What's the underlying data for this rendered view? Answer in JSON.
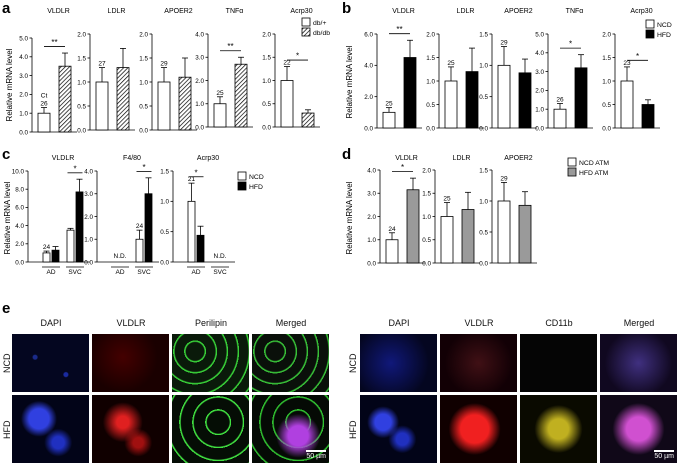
{
  "panels": {
    "a": "a",
    "b": "b",
    "c": "c",
    "d": "d",
    "e": "e"
  },
  "ylabel": "Relative mRNA level",
  "legends": {
    "a": [
      {
        "label": "db/+",
        "fill": "white"
      },
      {
        "label": "db/db",
        "fill": "hatched"
      }
    ],
    "b": [
      {
        "label": "NCD",
        "fill": "white"
      },
      {
        "label": "HFD",
        "fill": "black"
      }
    ],
    "c": [
      {
        "label": "NCD",
        "fill": "white"
      },
      {
        "label": "HFD",
        "fill": "black"
      }
    ],
    "d": [
      {
        "label": "NCD ATM",
        "fill": "white"
      },
      {
        "label": "HFD ATM",
        "fill": "gray"
      }
    ]
  },
  "colors": {
    "white": "#ffffff",
    "black": "#000000",
    "gray": "#9a9a9a",
    "hatched": "#000000"
  },
  "chart_data": [
    {
      "panel": "a",
      "type": "bar",
      "title": "VLDLR",
      "ylim": [
        0,
        5
      ],
      "tick_step": 1,
      "series": [
        {
          "name": "db/+",
          "values": [
            1.0
          ],
          "errors": [
            0.3
          ]
        },
        {
          "name": "db/db",
          "values": [
            3.5
          ],
          "errors": [
            0.7
          ]
        }
      ],
      "ct_label": "26",
      "ct_prefix": "Ct",
      "significance": "**"
    },
    {
      "panel": "a",
      "type": "bar",
      "title": "LDLR",
      "ylim": [
        0,
        2
      ],
      "tick_step": 0.5,
      "series": [
        {
          "name": "db/+",
          "values": [
            1.0
          ],
          "errors": [
            0.3
          ]
        },
        {
          "name": "db/db",
          "values": [
            1.3
          ],
          "errors": [
            0.4
          ]
        }
      ],
      "ct_label": "27",
      "significance": ""
    },
    {
      "panel": "a",
      "type": "bar",
      "title": "APOER2",
      "ylim": [
        0,
        2
      ],
      "tick_step": 0.5,
      "series": [
        {
          "name": "db/+",
          "values": [
            1.0
          ],
          "errors": [
            0.3
          ]
        },
        {
          "name": "db/db",
          "values": [
            1.1
          ],
          "errors": [
            0.4
          ]
        }
      ],
      "ct_label": "29",
      "significance": ""
    },
    {
      "panel": "a",
      "type": "bar",
      "title": "TNFα",
      "ylim": [
        0,
        4
      ],
      "tick_step": 1,
      "series": [
        {
          "name": "db/+",
          "values": [
            1.0
          ],
          "errors": [
            0.3
          ]
        },
        {
          "name": "db/db",
          "values": [
            2.7
          ],
          "errors": [
            0.3
          ]
        }
      ],
      "ct_label": "25",
      "significance": "**"
    },
    {
      "panel": "a",
      "type": "bar",
      "title": "Acrp30",
      "ylim": [
        0,
        2
      ],
      "tick_step": 0.5,
      "series": [
        {
          "name": "db/+",
          "values": [
            1.0
          ],
          "errors": [
            0.3
          ]
        },
        {
          "name": "db/db",
          "values": [
            0.3
          ],
          "errors": [
            0.07
          ]
        }
      ],
      "ct_label": "22",
      "significance": "*"
    },
    {
      "panel": "b",
      "type": "bar",
      "title": "VLDLR",
      "ylim": [
        0,
        6
      ],
      "tick_step": 2,
      "series": [
        {
          "name": "NCD",
          "values": [
            1.0
          ],
          "errors": [
            0.3
          ]
        },
        {
          "name": "HFD",
          "values": [
            4.5
          ],
          "errors": [
            1.1
          ]
        }
      ],
      "ct_label": "25",
      "significance": "**"
    },
    {
      "panel": "b",
      "type": "bar",
      "title": "LDLR",
      "ylim": [
        0,
        2
      ],
      "tick_step": 0.5,
      "series": [
        {
          "name": "NCD",
          "values": [
            1.0
          ],
          "errors": [
            0.3
          ]
        },
        {
          "name": "HFD",
          "values": [
            1.2
          ],
          "errors": [
            0.5
          ]
        }
      ],
      "ct_label": "25",
      "significance": ""
    },
    {
      "panel": "b",
      "type": "bar",
      "title": "APOER2",
      "ylim": [
        0,
        1.5
      ],
      "tick_step": 0.5,
      "series": [
        {
          "name": "NCD",
          "values": [
            1.0
          ],
          "errors": [
            0.3
          ]
        },
        {
          "name": "HFD",
          "values": [
            0.88
          ],
          "errors": [
            0.22
          ]
        }
      ],
      "ct_label": "29",
      "significance": ""
    },
    {
      "panel": "b",
      "type": "bar",
      "title": "TNFα",
      "ylim": [
        0,
        5
      ],
      "tick_step": 1,
      "series": [
        {
          "name": "NCD",
          "values": [
            1.0
          ],
          "errors": [
            0.3
          ]
        },
        {
          "name": "HFD",
          "values": [
            3.2
          ],
          "errors": [
            0.7
          ]
        }
      ],
      "ct_label": "26",
      "significance": "*"
    },
    {
      "panel": "b",
      "type": "bar",
      "title": "Acrp30",
      "ylim": [
        0,
        2
      ],
      "tick_step": 0.5,
      "series": [
        {
          "name": "NCD",
          "values": [
            1.0
          ],
          "errors": [
            0.3
          ]
        },
        {
          "name": "HFD",
          "values": [
            0.5
          ],
          "errors": [
            0.1
          ]
        }
      ],
      "ct_label": "23",
      "significance": "*"
    },
    {
      "panel": "c",
      "type": "bar",
      "title": "VLDLR",
      "ylim": [
        0,
        10
      ],
      "tick_step": 2,
      "categories": [
        "AD",
        "SVC"
      ],
      "series": [
        {
          "name": "NCD",
          "values": [
            1.0,
            3.5
          ],
          "errors": [
            0.2,
            0.2
          ]
        },
        {
          "name": "HFD",
          "values": [
            1.3,
            7.7
          ],
          "errors": [
            0.4,
            1.4
          ]
        }
      ],
      "ct_label": "24",
      "ct_group": 0,
      "significance": "*",
      "sig_group": 1,
      "not_detected": []
    },
    {
      "panel": "c",
      "type": "bar",
      "title": "F4/80",
      "ylim": [
        0,
        4
      ],
      "tick_step": 1,
      "categories": [
        "AD",
        "SVC"
      ],
      "series": [
        {
          "name": "NCD",
          "values": [
            null,
            1.0
          ],
          "errors": [
            null,
            0.4
          ]
        },
        {
          "name": "HFD",
          "values": [
            null,
            3.0
          ],
          "errors": [
            null,
            0.7
          ]
        }
      ],
      "ct_label": "24",
      "ct_group": 1,
      "significance": "*",
      "sig_group": 1,
      "not_detected": [
        0
      ],
      "nd_label": "N.D."
    },
    {
      "panel": "c",
      "type": "bar",
      "title": "Acrp30",
      "ylim": [
        0,
        1.5
      ],
      "tick_step": 0.5,
      "categories": [
        "AD",
        "SVC"
      ],
      "series": [
        {
          "name": "NCD",
          "values": [
            1.0,
            null
          ],
          "errors": [
            0.3,
            null
          ]
        },
        {
          "name": "HFD",
          "values": [
            0.44,
            null
          ],
          "errors": [
            0.15,
            null
          ]
        }
      ],
      "ct_label": "21",
      "ct_group": 0,
      "significance": "*",
      "sig_group": 0,
      "not_detected": [
        1
      ],
      "nd_label": "N.D."
    },
    {
      "panel": "d",
      "type": "bar",
      "title": "VLDLR",
      "ylim": [
        0,
        4
      ],
      "tick_step": 1,
      "series": [
        {
          "name": "NCD ATM",
          "values": [
            1.0
          ],
          "errors": [
            0.3
          ]
        },
        {
          "name": "HFD ATM",
          "values": [
            3.15
          ],
          "errors": [
            0.5
          ]
        }
      ],
      "ct_label": "24",
      "significance": "*"
    },
    {
      "panel": "d",
      "type": "bar",
      "title": "LDLR",
      "ylim": [
        0,
        2
      ],
      "tick_step": 0.5,
      "series": [
        {
          "name": "NCD ATM",
          "values": [
            1.0
          ],
          "errors": [
            0.3
          ]
        },
        {
          "name": "HFD ATM",
          "values": [
            1.15
          ],
          "errors": [
            0.37
          ]
        }
      ],
      "ct_label": "25",
      "significance": ""
    },
    {
      "panel": "d",
      "type": "bar",
      "title": "APOER2",
      "ylim": [
        0,
        1.5
      ],
      "tick_step": 0.5,
      "series": [
        {
          "name": "NCD ATM",
          "values": [
            1.0
          ],
          "errors": [
            0.3
          ]
        },
        {
          "name": "HFD ATM",
          "values": [
            0.93
          ],
          "errors": [
            0.22
          ]
        }
      ],
      "ct_label": "29",
      "significance": ""
    }
  ],
  "micrographs": {
    "left": {
      "columns": [
        "DAPI",
        "VLDLR",
        "Perilipin",
        "Merged"
      ],
      "rows": [
        "NCD",
        "HFD"
      ],
      "scale_bar": "50 µm"
    },
    "right": {
      "columns": [
        "DAPI",
        "VLDLR",
        "CD11b",
        "Merged"
      ],
      "rows": [
        "NCD",
        "HFD"
      ],
      "scale_bar": "50 µm"
    }
  }
}
